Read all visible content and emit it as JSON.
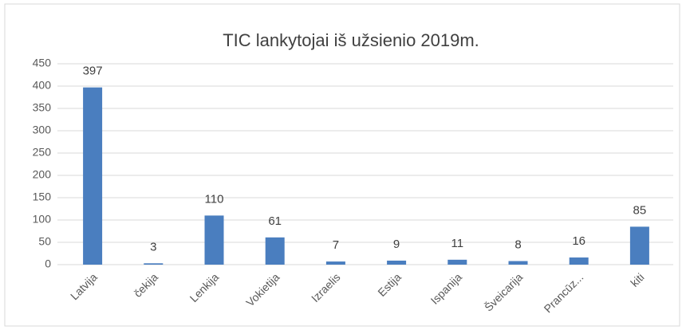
{
  "chart_data": {
    "type": "bar",
    "title": "TIC lankytojai iš užsienio 2019m.",
    "categories": [
      "Latvija",
      "čekija",
      "Lenkija",
      "Vokietija",
      "Izraelis",
      "Estija",
      "Ispanija",
      "Šveicarija",
      "Prancūz...",
      "kiti"
    ],
    "values": [
      397,
      3,
      110,
      61,
      7,
      9,
      11,
      8,
      16,
      85
    ],
    "color": "#4a7ebf",
    "ylim": [
      0,
      450
    ],
    "yticks": [
      0,
      50,
      100,
      150,
      200,
      250,
      300,
      350,
      400,
      450
    ],
    "grid": true
  }
}
